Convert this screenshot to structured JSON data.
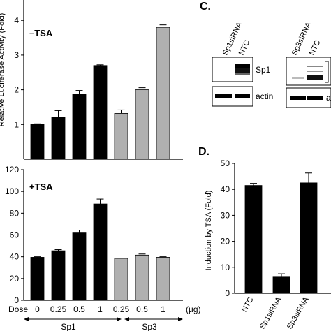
{
  "panels": {
    "c": "C.",
    "d": "D."
  },
  "chart_data": [
    {
      "id": "minus_tsa",
      "type": "bar",
      "title": "–TSA",
      "ylabel": "Relative Luciferase Activity (Fold)",
      "ylim": [
        0,
        4.3
      ],
      "yticks": [
        1,
        2,
        3,
        4
      ],
      "categories": [
        "Sp1 0",
        "Sp1 0.25",
        "Sp1 0.5",
        "Sp1 1",
        "Sp3 0.25",
        "Sp3 0.5",
        "Sp3 1"
      ],
      "values": [
        1.0,
        1.2,
        1.88,
        2.7,
        1.32,
        2.0,
        3.8
      ],
      "errors": [
        0.02,
        0.2,
        0.1,
        0.02,
        0.1,
        0.06,
        0.07
      ],
      "bar_colors": [
        "#000000",
        "#000000",
        "#000000",
        "#000000",
        "#b0b0b0",
        "#b0b0b0",
        "#b0b0b0"
      ]
    },
    {
      "id": "plus_tsa",
      "type": "bar",
      "title": "+TSA",
      "ylim": [
        0,
        120
      ],
      "yticks": [
        0,
        20,
        40,
        60,
        80,
        100,
        120
      ],
      "categories": [
        "Sp1 0",
        "Sp1 0.25",
        "Sp1 0.5",
        "Sp1 1",
        "Sp3 0.25",
        "Sp3 0.5",
        "Sp3 1"
      ],
      "values": [
        39.5,
        45.5,
        62.5,
        88.5,
        38.5,
        41.5,
        39.5
      ],
      "errors": [
        0.5,
        1.0,
        2.0,
        4.5,
        0.3,
        1.0,
        0.5
      ],
      "bar_colors": [
        "#000000",
        "#000000",
        "#000000",
        "#000000",
        "#b0b0b0",
        "#b0b0b0",
        "#b0b0b0"
      ],
      "dose_label": "Dose",
      "dose_ticks": [
        "0",
        "0.25",
        "0.5",
        "1",
        "0.25",
        "0.5",
        "1"
      ],
      "dose_unit": "(µg)",
      "groups": [
        "Sp1",
        "Sp3"
      ]
    },
    {
      "id": "induction",
      "type": "bar",
      "ylabel": "Induction by TSA (Fold)",
      "ylim": [
        0,
        50
      ],
      "yticks": [
        0,
        10,
        20,
        30,
        40,
        50
      ],
      "categories": [
        "NTC",
        "Sp1siRNA",
        "Sp3siRNA"
      ],
      "values": [
        41.5,
        6.5,
        42.5
      ],
      "errors": [
        0.8,
        1.0,
        3.8
      ],
      "bar_colors": [
        "#000000",
        "#000000",
        "#000000"
      ]
    }
  ],
  "blots": {
    "left": {
      "lanes": [
        "Sp1siRNA",
        "NTC"
      ],
      "rows": [
        "Sp1",
        "actin"
      ]
    },
    "right": {
      "lanes": [
        "Sp3siRNA",
        "NTC"
      ],
      "rows": [
        "a"
      ]
    }
  }
}
